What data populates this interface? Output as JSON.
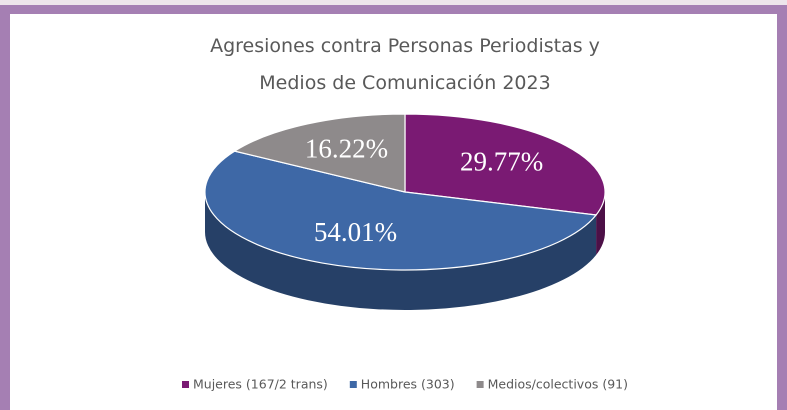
{
  "chart_data": {
    "type": "pie",
    "title": [
      "Agresiones contra Personas Periodistas y",
      "Medios de Comunicación 2023"
    ],
    "categories": [
      "Mujeres (167/2 trans)",
      "Hombres (303)",
      "Medios/colectivos (91)"
    ],
    "values": [
      29.77,
      54.01,
      16.22
    ],
    "value_labels": [
      "29.77%",
      "54.01%",
      "16.22%"
    ],
    "colors": [
      "#7a1a73",
      "#3e68a6",
      "#8e8a8b"
    ],
    "legend": "bottom"
  }
}
